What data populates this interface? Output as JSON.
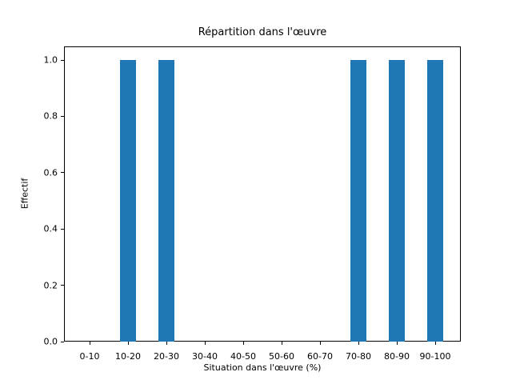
{
  "chart_data": {
    "type": "bar",
    "title": "Répartition dans l'œuvre",
    "xlabel": "Situation dans l'œuvre (%)",
    "ylabel": "Effectif",
    "categories": [
      "0-10",
      "10-20",
      "20-30",
      "30-40",
      "40-50",
      "50-60",
      "60-70",
      "70-80",
      "80-90",
      "90-100"
    ],
    "values": [
      0,
      1,
      1,
      0,
      0,
      0,
      0,
      1,
      1,
      1
    ],
    "yticks": [
      0.0,
      0.2,
      0.4,
      0.6,
      0.8,
      1.0
    ],
    "ylim": [
      0,
      1.05
    ],
    "bar_color": "#1f77b4",
    "grid": false,
    "legend": null
  }
}
